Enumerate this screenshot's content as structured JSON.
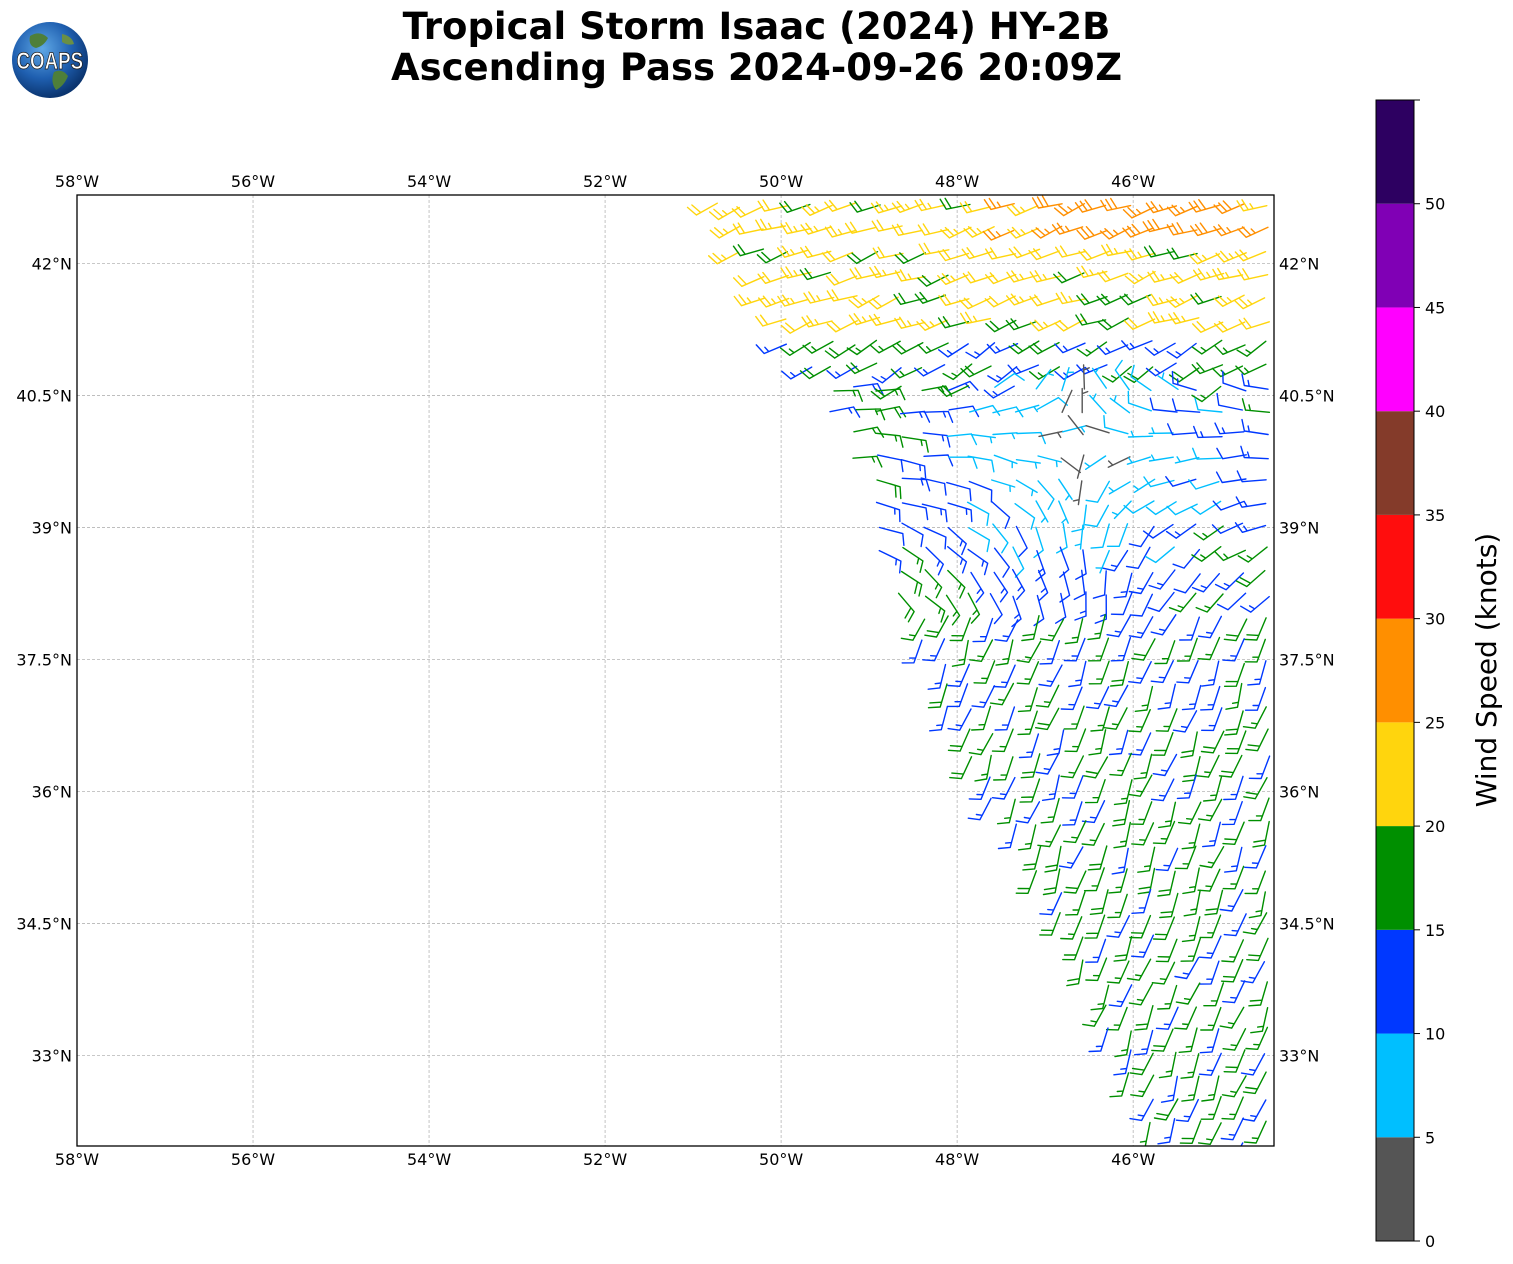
{
  "header": {
    "title_line1": "Tropical Storm Isaac (2024) HY-2B",
    "title_line2": "Ascending Pass 2024-09-26 20:09Z",
    "logo_text": "COAPS"
  },
  "map": {
    "lon_range": [
      -58,
      -44.4
    ],
    "lat_range": [
      31.97,
      42.78
    ],
    "gridlines": true,
    "lon_ticks": [
      {
        "value": -58,
        "label": "58°W"
      },
      {
        "value": -56,
        "label": "56°W"
      },
      {
        "value": -54,
        "label": "54°W"
      },
      {
        "value": -52,
        "label": "52°W"
      },
      {
        "value": -50,
        "label": "50°W"
      },
      {
        "value": -48,
        "label": "48°W"
      },
      {
        "value": -46,
        "label": "46°W"
      }
    ],
    "lat_ticks": [
      {
        "value": 42,
        "label": "42°N"
      },
      {
        "value": 40.5,
        "label": "40.5°N"
      },
      {
        "value": 39,
        "label": "39°N"
      },
      {
        "value": 37.5,
        "label": "37.5°N"
      },
      {
        "value": 36,
        "label": "36°N"
      },
      {
        "value": 34.5,
        "label": "34.5°N"
      },
      {
        "value": 33,
        "label": "33°N"
      }
    ],
    "swath_polygon": [
      [
        -50.8,
        42.78
      ],
      [
        -44.4,
        42.78
      ],
      [
        -44.4,
        32.0
      ],
      [
        -45.8,
        32.0
      ],
      [
        -46.3,
        33.3
      ],
      [
        -47.0,
        34.8
      ],
      [
        -47.7,
        36.0
      ],
      [
        -48.3,
        37.3
      ],
      [
        -48.8,
        38.3
      ],
      [
        -49.0,
        39.2
      ],
      [
        -49.5,
        40.3
      ],
      [
        -50.1,
        41.3
      ],
      [
        -50.6,
        42.3
      ]
    ],
    "wind_field": {
      "regions": [
        {
          "name": "northern band",
          "lat_min": 41.3,
          "speed_kt": 22,
          "dir_deg": 250
        },
        {
          "name": "northeast corner",
          "lat_min": 42.2,
          "lon_min": -47.5,
          "speed_kt": 27,
          "dir_deg": 250
        },
        {
          "name": "ring",
          "lat_min": 40.6,
          "lat_max": 41.3,
          "speed_kt": 16,
          "dir_deg": 240
        },
        {
          "name": "storm core",
          "center_lon": -46.6,
          "center_lat": 40.0,
          "core_speed_kt": 3
        },
        {
          "name": "southern band",
          "lat_max": 38.0,
          "speed_kt": 16,
          "dir_deg": 200
        }
      ]
    }
  },
  "colorbar": {
    "title": "Wind Speed (knots)",
    "range": [
      0,
      55
    ],
    "colors": [
      "#555555",
      "#00bfff",
      "#0038ff",
      "#008f00",
      "#ffd50d",
      "#ff8f00",
      "#ff0d0d",
      "#843b2a",
      "#ff00ff",
      "#8000b5",
      "#2d0061"
    ],
    "ticks": [
      {
        "value": 0,
        "label": "0"
      },
      {
        "value": 5,
        "label": "5"
      },
      {
        "value": 10,
        "label": "10"
      },
      {
        "value": 15,
        "label": "15"
      },
      {
        "value": 20,
        "label": "20"
      },
      {
        "value": 25,
        "label": "25"
      },
      {
        "value": 30,
        "label": "30"
      },
      {
        "value": 35,
        "label": "35"
      },
      {
        "value": 40,
        "label": "40"
      },
      {
        "value": 45,
        "label": "45"
      },
      {
        "value": 50,
        "label": "50"
      }
    ]
  }
}
